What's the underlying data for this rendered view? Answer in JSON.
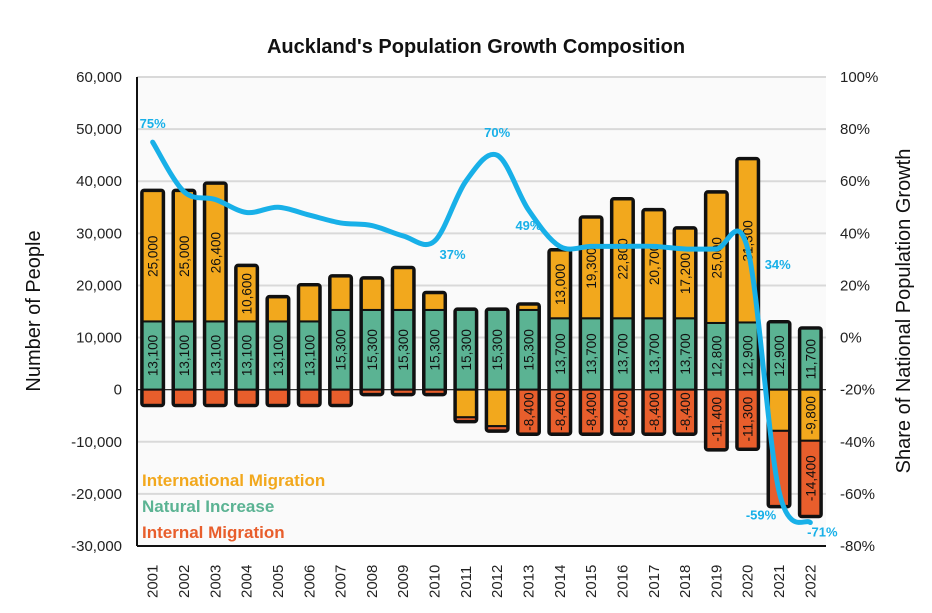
{
  "chart_data": {
    "type": "bar",
    "subtype": "stacked-bar-with-line",
    "title": "Auckland's Population Growth Composition",
    "xlabel": "",
    "ylabel": "Number of People",
    "y2label": "Share of National Population Growth",
    "ylim": [
      -30000,
      60000
    ],
    "y2lim": [
      -0.8,
      1.0
    ],
    "yticks": [
      "60,000",
      "50,000",
      "40,000",
      "30,000",
      "20,000",
      "10,000",
      "0",
      "-10,000",
      "-20,000",
      "-30,000"
    ],
    "y2ticks": [
      "100%",
      "80%",
      "60%",
      "40%",
      "20%",
      "0%",
      "-20%",
      "-40%",
      "-60%",
      "-80%"
    ],
    "grid": true,
    "legend_position": "bottom-left",
    "categories": [
      "2001",
      "2002",
      "2003",
      "2004",
      "2005",
      "2006",
      "2007",
      "2008",
      "2009",
      "2010",
      "2011",
      "2012",
      "2013",
      "2014",
      "2015",
      "2016",
      "2017",
      "2018",
      "2019",
      "2020",
      "2021",
      "2022"
    ],
    "colors": {
      "international": "#f2a81d",
      "natural": "#5bb393",
      "internal": "#e85e2c",
      "line": "#18b0e8"
    },
    "series": [
      {
        "name": "Natural Increase",
        "key": "natural",
        "values": [
          13100,
          13100,
          13100,
          13100,
          13100,
          13100,
          15300,
          15300,
          15300,
          15300,
          15300,
          15300,
          15300,
          13700,
          13700,
          13700,
          13700,
          13700,
          12800,
          12900,
          12900,
          11700
        ],
        "labels": [
          "13,100",
          "13,100",
          "13,100",
          "13,100",
          "13,100",
          "13,100",
          "15,300",
          "15,300",
          "15,300",
          "15,300",
          "15,300",
          "15,300",
          "15,300",
          "13,700",
          "13,700",
          "13,700",
          "13,700",
          "13,700",
          "12,800",
          "12,900",
          "12,900",
          "11,700"
        ]
      },
      {
        "name": "International Migration",
        "key": "international",
        "values": [
          25000,
          25000,
          26400,
          10600,
          4600,
          6900,
          6400,
          6000,
          8000,
          3200,
          -5300,
          -7000,
          1000,
          13000,
          19300,
          22800,
          20700,
          17200,
          25000,
          31300,
          -7900,
          -9800
        ],
        "labels": [
          "25,000",
          "25,000",
          "26,400",
          "10,600",
          "",
          "",
          "",
          "",
          "",
          "",
          "",
          "",
          "",
          "13,000",
          "19,300",
          "22,800",
          "20,700",
          "17,200",
          "25,000",
          "31,300",
          "",
          "-9,800"
        ]
      },
      {
        "name": "Internal Migration",
        "key": "internal",
        "values": [
          -2900,
          -2900,
          -2900,
          -2900,
          -2900,
          -2900,
          -2900,
          -800,
          -800,
          -800,
          -700,
          -800,
          -8400,
          -8400,
          -8400,
          -8400,
          -8400,
          -8400,
          -11400,
          -11300,
          -14400,
          -14400
        ],
        "labels": [
          "",
          "",
          "",
          "",
          "",
          "",
          "",
          "",
          "",
          "",
          "",
          "",
          "-8,400",
          "-8,400",
          "-8,400",
          "-8,400",
          "-8,400",
          "-8,400",
          "-11,400",
          "-11,300",
          "",
          "-14,400"
        ]
      }
    ],
    "line": {
      "name": "Share of National Population Growth",
      "axis": "right",
      "values": [
        0.75,
        0.56,
        0.53,
        0.48,
        0.5,
        0.47,
        0.44,
        0.43,
        0.39,
        0.37,
        0.6,
        0.7,
        0.49,
        0.35,
        0.35,
        0.35,
        0.35,
        0.34,
        0.34,
        0.34,
        -0.59,
        -0.71
      ],
      "annotations": [
        {
          "index": 0,
          "text": "75%"
        },
        {
          "index": 9,
          "text": "37%"
        },
        {
          "index": 11,
          "text": "70%"
        },
        {
          "index": 12,
          "text": "49%"
        },
        {
          "index": 19,
          "text": "34%"
        },
        {
          "index": 20,
          "text": "-59%"
        },
        {
          "index": 21,
          "text": "-71%"
        }
      ]
    },
    "legend": [
      {
        "text": "International Migration",
        "key": "international"
      },
      {
        "text": "Natural Increase",
        "key": "natural"
      },
      {
        "text": "Internal Migration",
        "key": "internal"
      }
    ]
  }
}
